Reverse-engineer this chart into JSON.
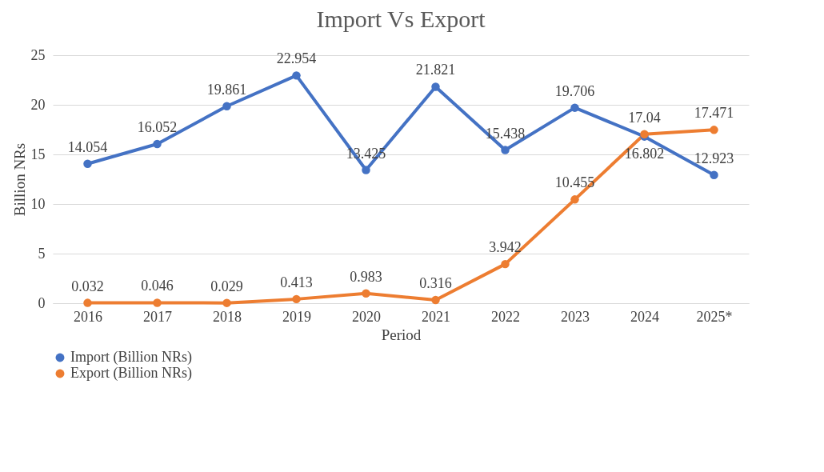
{
  "chart_data": {
    "type": "line",
    "title": "Import Vs Export",
    "xlabel": "Period",
    "ylabel": "Billion NRs",
    "categories": [
      "2016",
      "2017",
      "2018",
      "2019",
      "2020",
      "2021",
      "2022",
      "2023",
      "2024",
      "2025*"
    ],
    "series": [
      {
        "name": "Import (Billion NRs)",
        "color": "#4472c4",
        "values": [
          14.054,
          16.052,
          19.861,
          22.954,
          13.425,
          21.821,
          15.438,
          19.706,
          16.802,
          12.923
        ]
      },
      {
        "name": "Export (Billion NRs)",
        "color": "#ed7d31",
        "values": [
          0.032,
          0.046,
          0.029,
          0.413,
          0.983,
          0.316,
          3.942,
          10.455,
          17.04,
          17.471
        ]
      }
    ],
    "ylim": [
      0,
      25
    ],
    "yticks": [
      0,
      5,
      10,
      15,
      20,
      25
    ],
    "grid": "y",
    "legend": "bottom left",
    "marker": "circle",
    "line_style": "solid",
    "data_labels": true
  }
}
